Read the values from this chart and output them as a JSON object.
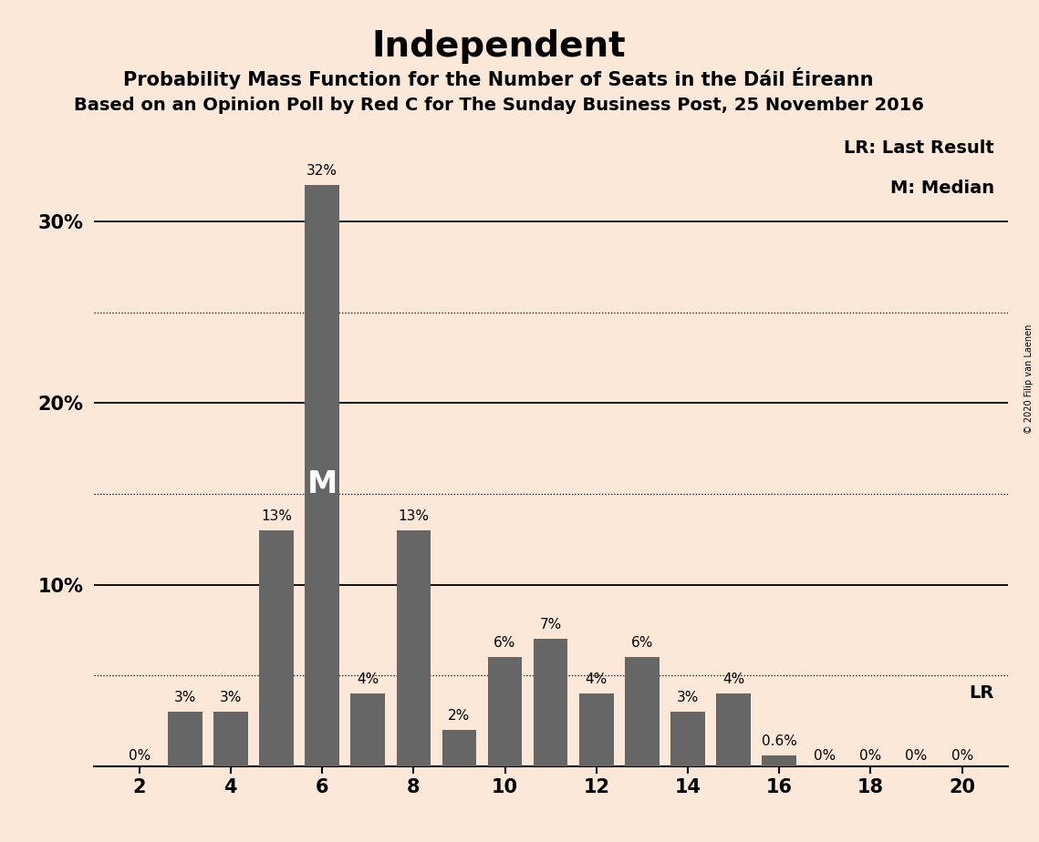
{
  "title": "Independent",
  "subtitle1": "Probability Mass Function for the Number of Seats in the Dáil Éireann",
  "subtitle2": "Based on an Opinion Poll by Red C for The Sunday Business Post, 25 November 2016",
  "copyright": "© 2020 Filip van Laenen",
  "seats": [
    2,
    3,
    4,
    5,
    6,
    7,
    8,
    9,
    10,
    11,
    12,
    13,
    14,
    15,
    16,
    17,
    18,
    19,
    20
  ],
  "probabilities": [
    0,
    3,
    3,
    13,
    32,
    4,
    13,
    2,
    6,
    7,
    4,
    6,
    3,
    4,
    0.6,
    0,
    0,
    0,
    0
  ],
  "labels": [
    "0%",
    "3%",
    "3%",
    "13%",
    "32%",
    "4%",
    "13%",
    "2%",
    "6%",
    "7%",
    "4%",
    "6%",
    "3%",
    "4%",
    "0.6%",
    "0%",
    "0%",
    "0%",
    "0%"
  ],
  "bar_color": "#666666",
  "background_color": "#fce8d8",
  "median_seat": 6,
  "median_label": "M",
  "median_y": 15.5,
  "lr_label": "LR",
  "lr_y": 5,
  "legend_lr": "LR: Last Result",
  "legend_m": "M: Median",
  "dotted_lines": [
    5,
    15,
    25
  ],
  "solid_lines": [
    10,
    20,
    30
  ],
  "xlim": [
    1.0,
    21.0
  ],
  "ylim": [
    0,
    35
  ],
  "title_fontsize": 28,
  "subtitle1_fontsize": 15,
  "subtitle2_fontsize": 14,
  "label_fontsize": 11,
  "tick_fontsize": 15,
  "legend_fontsize": 14,
  "bar_width": 0.75
}
